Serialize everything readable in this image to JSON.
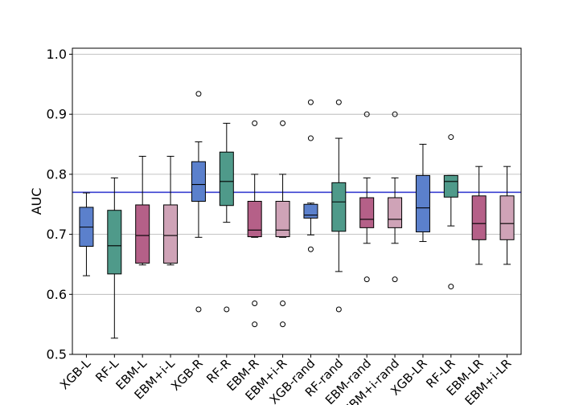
{
  "chart_data": {
    "type": "box",
    "title": "",
    "xlabel": "",
    "ylabel": "AUC",
    "ylim": [
      0.5,
      1.01
    ],
    "yticks": [
      "0.5",
      "0.6",
      "0.7",
      "0.8",
      "0.9",
      "1.0"
    ],
    "grid": "horizontal",
    "reference_line": {
      "y": 0.77,
      "color": "#3a3fd0"
    },
    "colors": {
      "XGB": "#5b80cc",
      "RF": "#4f9a8a",
      "EBM": "#b56088",
      "EBM_i": "#cfa3b7"
    },
    "categories": [
      "XGB-L",
      "RF-L",
      "EBM-L",
      "EBM+i-L",
      "XGB-R",
      "RF-R",
      "EBM-R",
      "EBM+i-R",
      "XGB-rand",
      "RF-rand",
      "EBM-rand",
      "EBM+i-rand",
      "XGB-LR",
      "RF-LR",
      "EBM-LR",
      "EBM+i-LR"
    ],
    "boxes": [
      {
        "label": "XGB-L",
        "whislo": 0.631,
        "q1": 0.68,
        "med": 0.712,
        "q3": 0.745,
        "whishi": 0.769,
        "fliers": [],
        "color": "#5b80cc"
      },
      {
        "label": "RF-L",
        "whislo": 0.527,
        "q1": 0.634,
        "med": 0.681,
        "q3": 0.74,
        "whishi": 0.794,
        "fliers": [],
        "color": "#4f9a8a"
      },
      {
        "label": "EBM-L",
        "whislo": 0.649,
        "q1": 0.652,
        "med": 0.698,
        "q3": 0.749,
        "whishi": 0.83,
        "fliers": [],
        "color": "#b56088"
      },
      {
        "label": "EBM+i-L",
        "whislo": 0.649,
        "q1": 0.652,
        "med": 0.698,
        "q3": 0.749,
        "whishi": 0.83,
        "fliers": [],
        "color": "#cfa3b7"
      },
      {
        "label": "XGB-R",
        "whislo": 0.695,
        "q1": 0.755,
        "med": 0.783,
        "q3": 0.821,
        "whishi": 0.854,
        "fliers": [
          0.575,
          0.934
        ],
        "color": "#5b80cc"
      },
      {
        "label": "RF-R",
        "whislo": 0.72,
        "q1": 0.748,
        "med": 0.788,
        "q3": 0.837,
        "whishi": 0.885,
        "fliers": [
          0.575
        ],
        "color": "#4f9a8a"
      },
      {
        "label": "EBM-R",
        "whislo": 0.695,
        "q1": 0.696,
        "med": 0.707,
        "q3": 0.755,
        "whishi": 0.8,
        "fliers": [
          0.55,
          0.585,
          0.885
        ],
        "color": "#b56088"
      },
      {
        "label": "EBM+i-R",
        "whislo": 0.695,
        "q1": 0.696,
        "med": 0.707,
        "q3": 0.755,
        "whishi": 0.8,
        "fliers": [
          0.55,
          0.585,
          0.885
        ],
        "color": "#cfa3b7"
      },
      {
        "label": "XGB-rand",
        "whislo": 0.699,
        "q1": 0.727,
        "med": 0.732,
        "q3": 0.75,
        "whishi": 0.752,
        "fliers": [
          0.675,
          0.86,
          0.92
        ],
        "color": "#5b80cc"
      },
      {
        "label": "RF-rand",
        "whislo": 0.638,
        "q1": 0.705,
        "med": 0.754,
        "q3": 0.786,
        "whishi": 0.86,
        "fliers": [
          0.575,
          0.92
        ],
        "color": "#4f9a8a"
      },
      {
        "label": "EBM-rand",
        "whislo": 0.685,
        "q1": 0.711,
        "med": 0.725,
        "q3": 0.761,
        "whishi": 0.794,
        "fliers": [
          0.625,
          0.9
        ],
        "color": "#b56088"
      },
      {
        "label": "EBM+i-rand",
        "whislo": 0.685,
        "q1": 0.711,
        "med": 0.725,
        "q3": 0.761,
        "whishi": 0.794,
        "fliers": [
          0.625,
          0.9
        ],
        "color": "#cfa3b7"
      },
      {
        "label": "XGB-LR",
        "whislo": 0.688,
        "q1": 0.704,
        "med": 0.744,
        "q3": 0.798,
        "whishi": 0.85,
        "fliers": [],
        "color": "#5b80cc"
      },
      {
        "label": "RF-LR",
        "whislo": 0.714,
        "q1": 0.762,
        "med": 0.788,
        "q3": 0.798,
        "whishi": 0.798,
        "fliers": [
          0.613,
          0.862
        ],
        "color": "#4f9a8a"
      },
      {
        "label": "EBM-LR",
        "whislo": 0.65,
        "q1": 0.691,
        "med": 0.718,
        "q3": 0.764,
        "whishi": 0.813,
        "fliers": [],
        "color": "#b56088"
      },
      {
        "label": "EBM+i-LR",
        "whislo": 0.65,
        "q1": 0.691,
        "med": 0.718,
        "q3": 0.764,
        "whishi": 0.813,
        "fliers": [],
        "color": "#cfa3b7"
      }
    ]
  }
}
